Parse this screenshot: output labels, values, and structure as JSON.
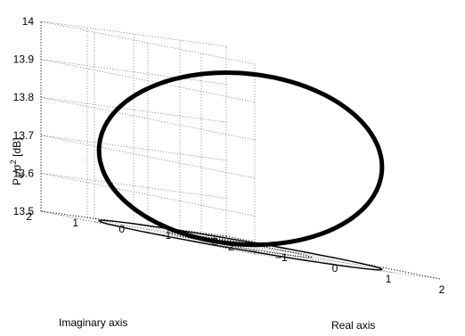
{
  "chart_data": {
    "type": "line3d",
    "title": "",
    "xlabel": "Real axis",
    "ylabel": "Imaginary axis",
    "zlabel_main": "P",
    "zlabel_sub": "d",
    "zlabel_mid": "/σ",
    "zlabel_sup": "2",
    "zlabel_unit": " [dB]",
    "xlim": [
      -2,
      2
    ],
    "ylim": [
      -2,
      2
    ],
    "zlim": [
      13.5,
      14
    ],
    "x_ticks": [
      "-2",
      "-1",
      "0",
      "1",
      "2"
    ],
    "y_ticks": [
      "-2",
      "-1",
      "0",
      "1",
      "2"
    ],
    "z_ticks": [
      "13.5",
      "13.6",
      "13.7",
      "13.8",
      "13.9",
      "14"
    ],
    "grid": true,
    "series": [
      {
        "style": "thick-solid",
        "description_of_curve": "closed loop: radius-2 circle in the complex plane, height varies with angle",
        "radius": 2,
        "z_min": 13.51,
        "z_max": 13.945
      },
      {
        "style": "thin-solid",
        "radius": 2,
        "z": 13.5
      },
      {
        "style": "dotted",
        "radius": 1,
        "z": 13.5
      }
    ]
  }
}
